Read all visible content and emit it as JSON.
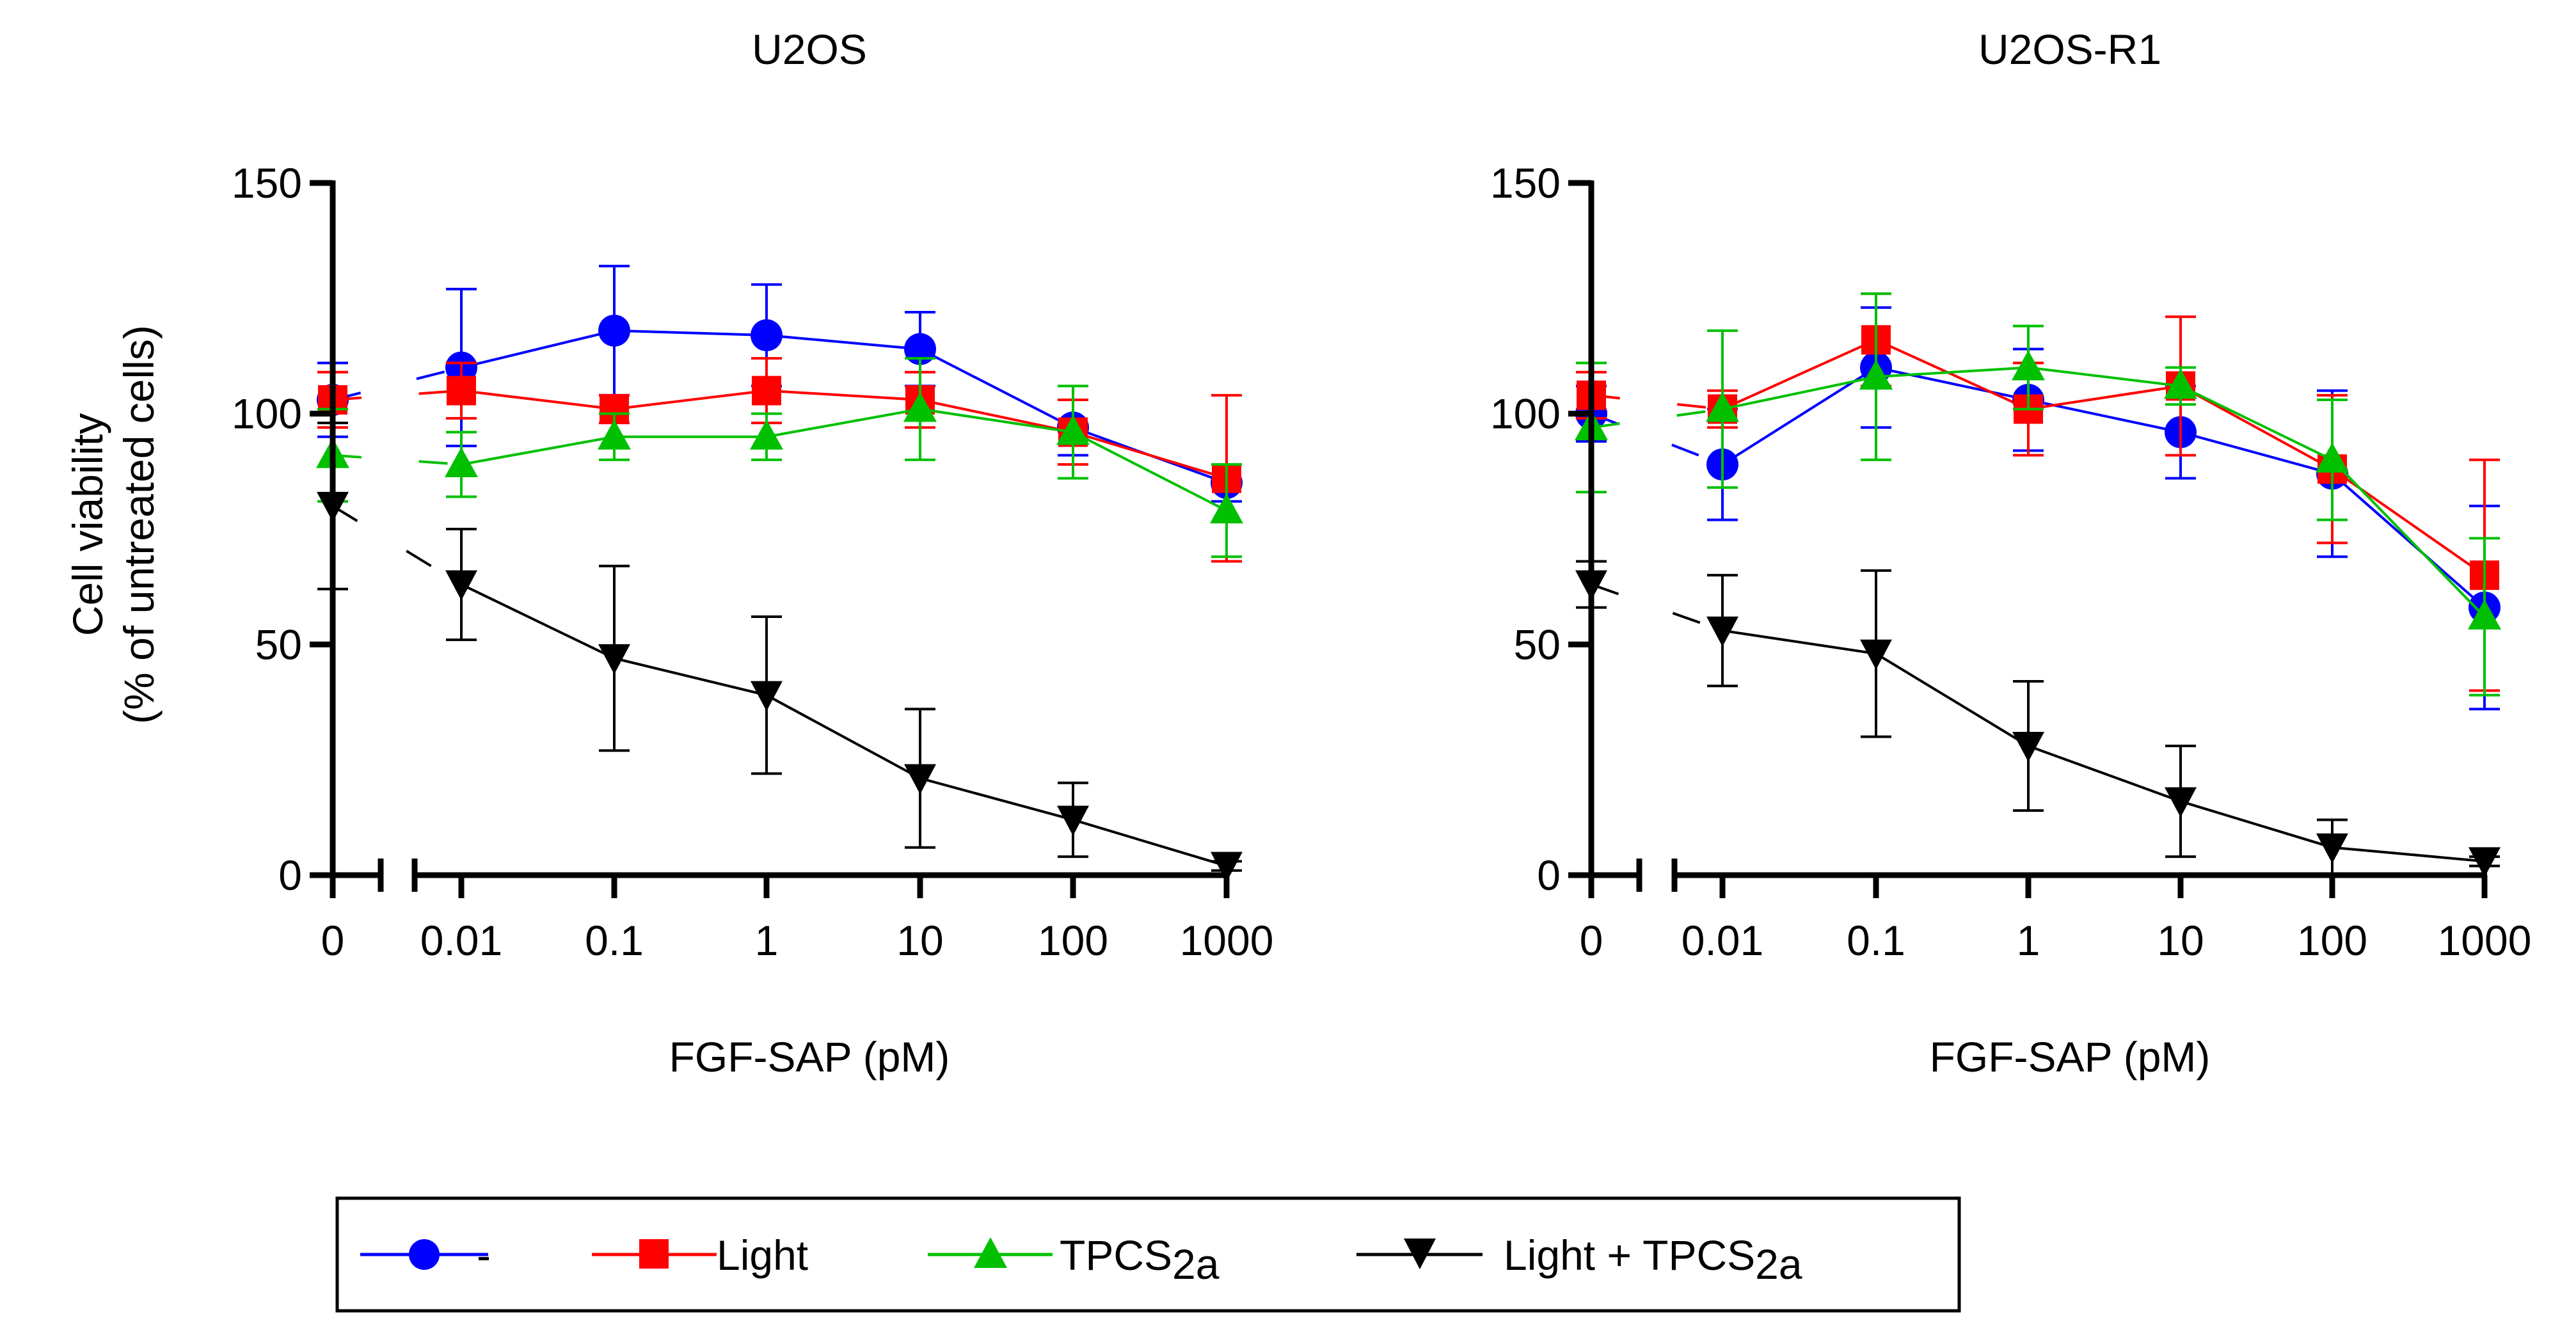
{
  "chart_data": {
    "type": "line",
    "ylabel_line1": "Cell viability",
    "ylabel_line2": "(% of untreated cells)",
    "xlabel": "FGF-SAP (pM)",
    "ylim": [
      0,
      150
    ],
    "y_ticks": [
      0,
      50,
      100,
      150
    ],
    "y_tick_labels": [
      "0",
      "50",
      "100",
      "150"
    ],
    "x_categories": [
      "0",
      "0.01",
      "0.1",
      "1",
      "10",
      "100",
      "1000"
    ],
    "x_scale": "log with broken axis (0 shown separately)",
    "legend_position": "bottom",
    "series_styles": [
      {
        "name": "-",
        "label": "-",
        "color": "#0000ff",
        "marker": "circle"
      },
      {
        "name": "Light",
        "label": "Light",
        "color": "#ff0000",
        "marker": "square"
      },
      {
        "name": "TPCS2a",
        "label_main": "TPCS",
        "label_sub": "2a",
        "color": "#00c000",
        "marker": "triangle-up"
      },
      {
        "name": "Light + TPCS2a",
        "label_main": "Light + TPCS",
        "label_sub": "2a",
        "color": "#000000",
        "marker": "triangle-down"
      }
    ],
    "panels": [
      {
        "title": "U2OS",
        "series": [
          {
            "name": "-",
            "values": [
              103,
              110,
              118,
              117,
              114,
              97,
              85
            ],
            "errors": [
              8,
              17,
              14,
              11,
              8,
              6,
              4
            ]
          },
          {
            "name": "Light",
            "values": [
              103,
              105,
              101,
              105,
              103,
              96,
              86
            ],
            "errors": [
              6,
              6,
              3,
              7,
              6,
              7,
              18
            ]
          },
          {
            "name": "TPCS2a",
            "values": [
              91,
              89,
              95,
              95,
              101,
              96,
              79
            ],
            "errors": [
              10,
              7,
              5,
              5,
              11,
              10,
              10
            ]
          },
          {
            "name": "Light + TPCS2a",
            "values": [
              80,
              63,
              47,
              39,
              21,
              12,
              2
            ],
            "errors": [
              18,
              12,
              20,
              17,
              15,
              8,
              1
            ]
          }
        ]
      },
      {
        "title": "U2OS-R1",
        "series": [
          {
            "name": "-",
            "values": [
              100,
              89,
              110,
              103,
              96,
              87,
              58
            ],
            "errors": [
              6,
              12,
              13,
              11,
              10,
              18,
              22
            ]
          },
          {
            "name": "Light",
            "values": [
              104,
              101,
              116,
              101,
              106,
              88,
              65
            ],
            "errors": [
              5,
              4,
              10,
              10,
              15,
              16,
              25
            ]
          },
          {
            "name": "TPCS2a",
            "values": [
              97,
              101,
              108,
              110,
              106,
              90,
              56
            ],
            "errors": [
              14,
              17,
              18,
              9,
              4,
              13,
              17
            ]
          },
          {
            "name": "Light + TPCS2a",
            "values": [
              63,
              53,
              48,
              28,
              16,
              6,
              3
            ],
            "errors": [
              5,
              12,
              18,
              14,
              12,
              6,
              1
            ]
          }
        ]
      }
    ]
  }
}
